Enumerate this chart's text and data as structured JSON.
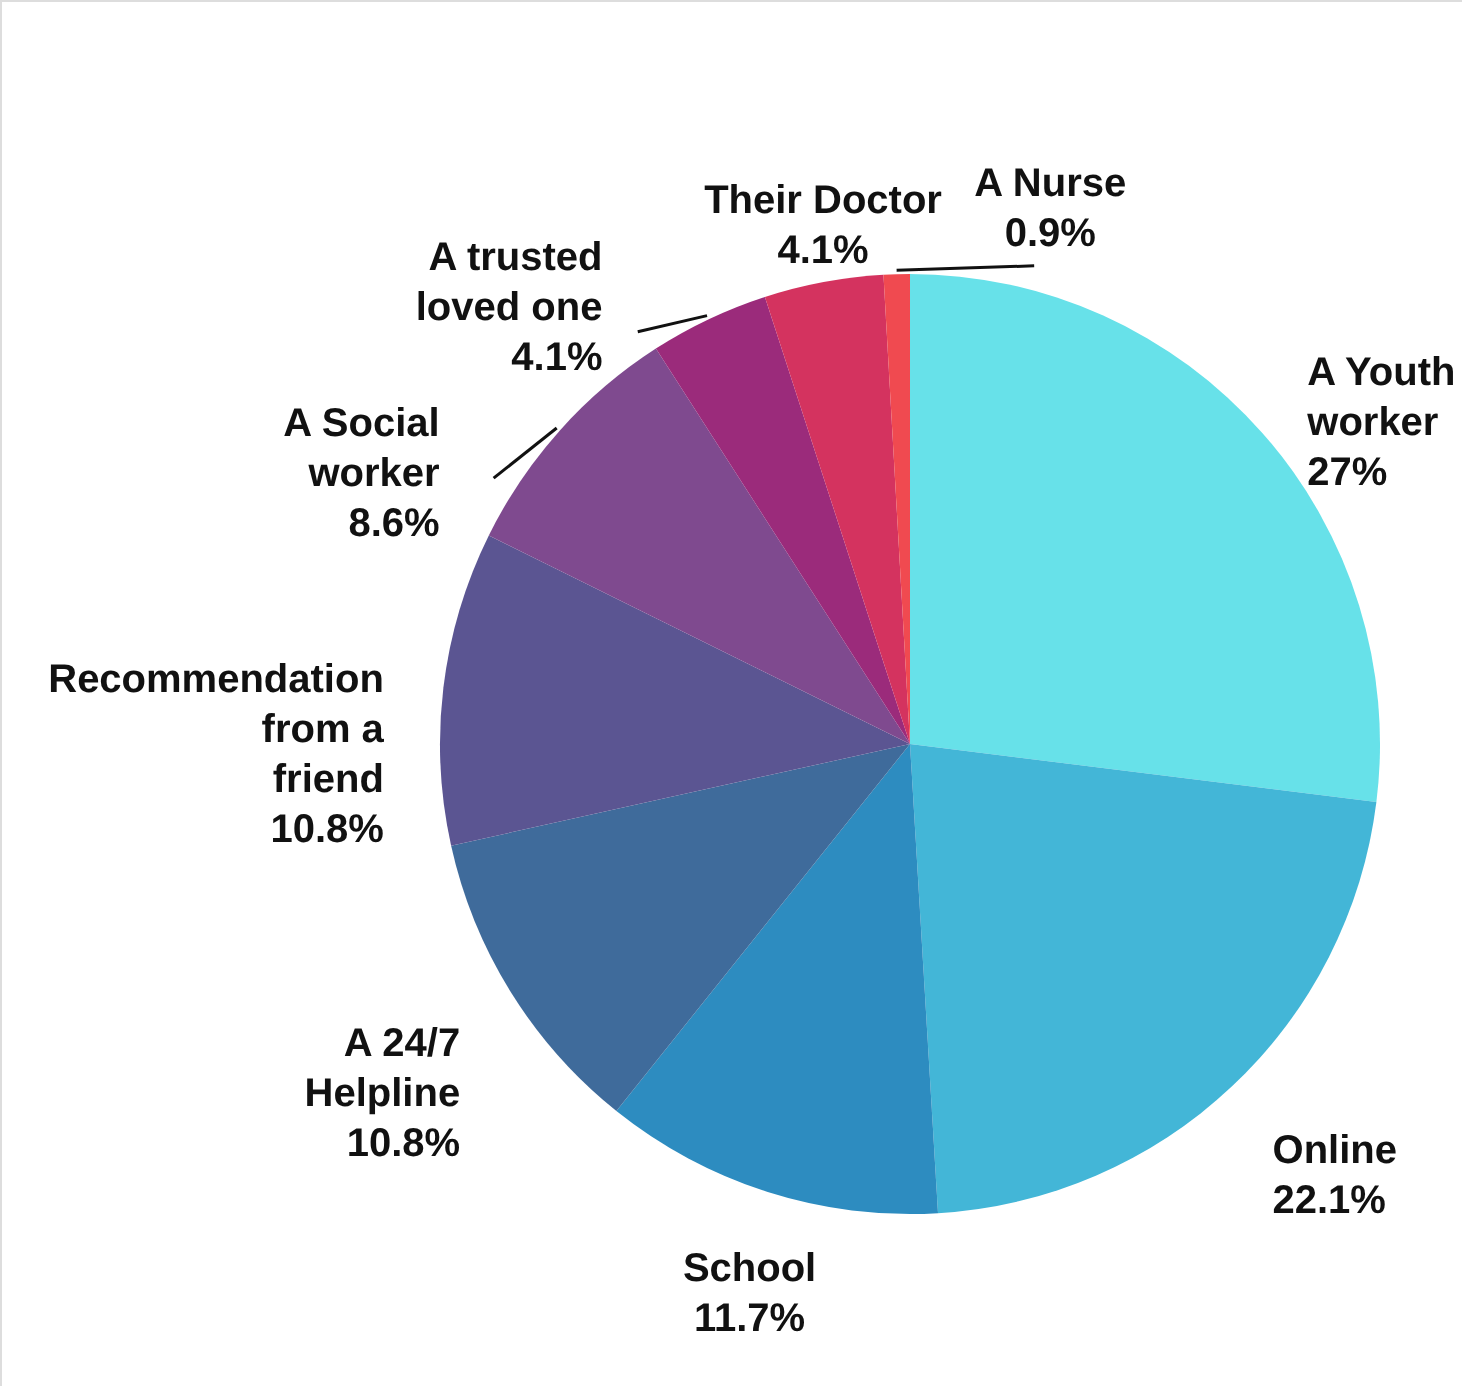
{
  "chart_data": {
    "type": "pie",
    "categories": [
      "A Youth worker",
      "Online",
      "School",
      "A 24/7 Helpline",
      "Recommendation from a friend",
      "A Social worker",
      "A trusted loved one",
      "Their Doctor",
      "A Nurse"
    ],
    "values": [
      27,
      22.1,
      11.7,
      10.8,
      10.8,
      8.6,
      4.1,
      4.1,
      0.9
    ],
    "value_labels": [
      "27%",
      "22.1%",
      "11.7%",
      "10.8%",
      "10.8%",
      "8.6%",
      "4.1%",
      "4.1%",
      "0.9%"
    ],
    "colors": [
      "#67e1e9",
      "#43b6d7",
      "#2d8cc0",
      "#3f6b9b",
      "#5b5592",
      "#7f4a8f",
      "#9b2b7b",
      "#d4335f",
      "#f04a50"
    ]
  }
}
